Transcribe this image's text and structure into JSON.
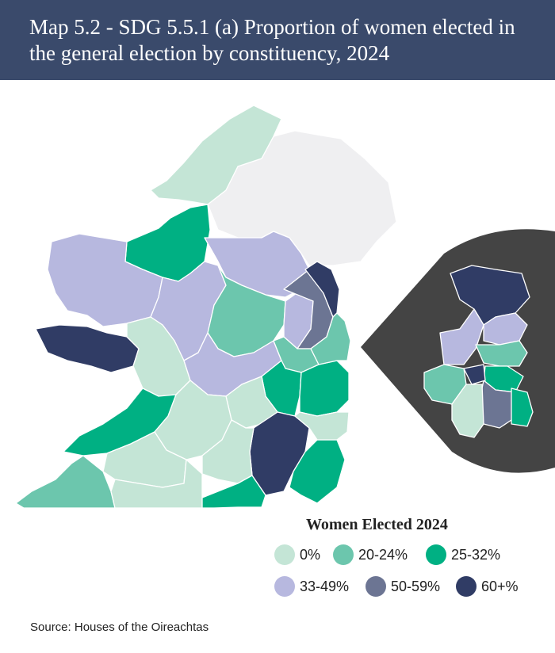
{
  "header": {
    "title": "Map 5.2 - SDG 5.5.1 (a) Proportion of women elected in the general election by constituency, 2024"
  },
  "legend": {
    "title": "Women Elected 2024",
    "items": [
      {
        "label": "0%",
        "color": "#c4e5d6"
      },
      {
        "label": "20-24%",
        "color": "#6cc6ad"
      },
      {
        "label": "25-32%",
        "color": "#00b083"
      },
      {
        "label": "33-49%",
        "color": "#b7b8df"
      },
      {
        "label": "50-59%",
        "color": "#6c7593"
      },
      {
        "label": "60+%",
        "color": "#303c65"
      }
    ]
  },
  "colors": {
    "header_bg": "#3a4a6b",
    "northern_ireland": "#efeff1",
    "inset_bg": "#444444"
  },
  "source": "Source: Houses of the Oireachtas"
}
